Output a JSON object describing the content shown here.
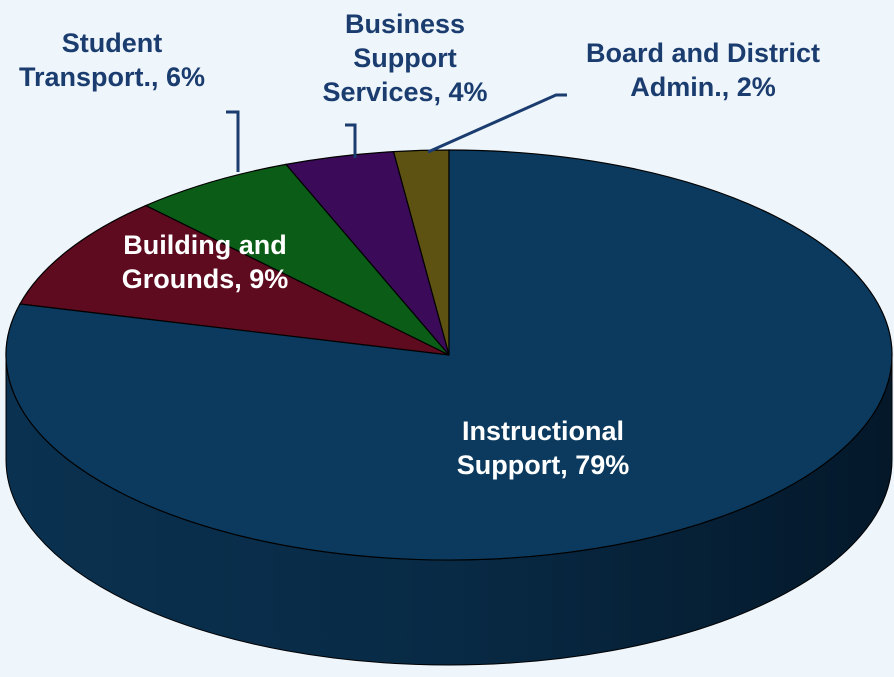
{
  "chart_data": {
    "type": "pie3d",
    "categories": [
      "Instructional Support",
      "Building and Grounds",
      "Student Transport.",
      "Business Support Services",
      "Board and District Admin."
    ],
    "values": [
      79,
      9,
      6,
      4,
      2
    ],
    "value_labels": [
      "Instructional Support, 79%",
      "Building and Grounds, 9%",
      "Student Transport., 6%",
      "Business Support Services, 4%",
      "Board and District Admin., 2%"
    ],
    "colors": [
      "#0b3a5e",
      "#5e0b1f",
      "#0b5c16",
      "#3b0b5a",
      "#5e5212"
    ]
  }
}
